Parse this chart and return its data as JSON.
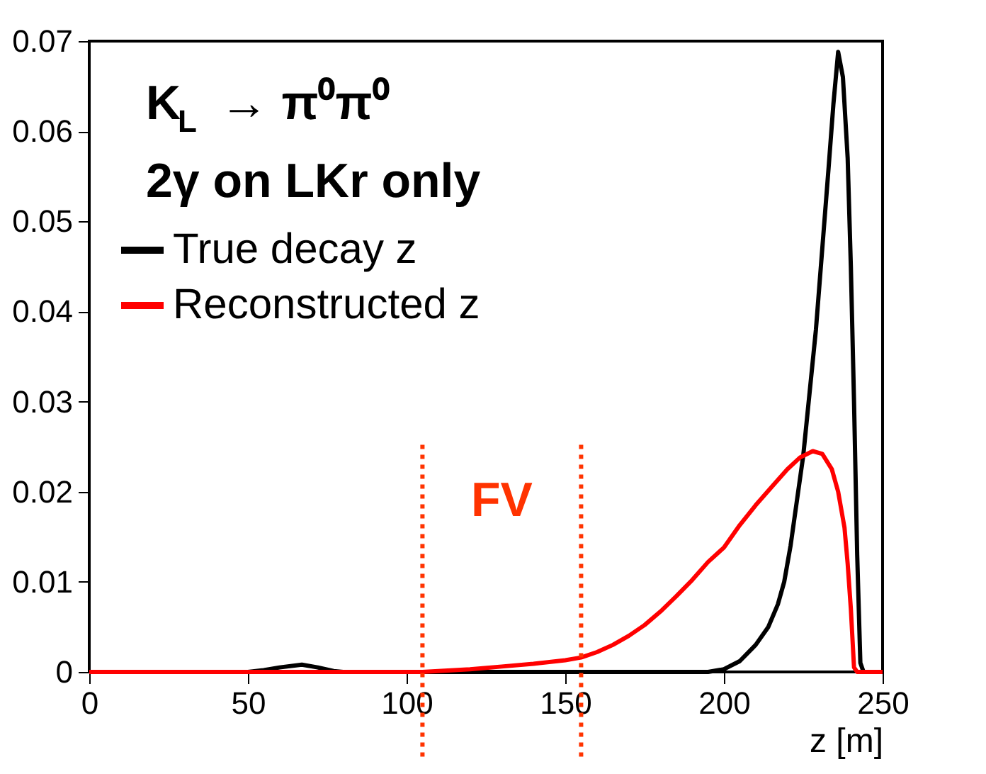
{
  "chart_data": {
    "type": "line",
    "xlabel": "z [m]",
    "xlim": [
      0,
      250
    ],
    "xticks": [
      0,
      50,
      100,
      150,
      200,
      250
    ],
    "ylim": [
      0,
      0.07
    ],
    "yticks": [
      0,
      0.01,
      0.02,
      0.03,
      0.04,
      0.05,
      0.06,
      0.07
    ],
    "grid": false,
    "legend": "top left",
    "series": [
      {
        "name": "True decay z",
        "color": "#000000",
        "x": [
          0,
          50,
          55,
          60,
          67,
          72,
          77,
          80,
          150,
          195,
          200,
          205,
          210,
          214,
          217,
          219,
          221,
          223,
          225,
          227,
          229,
          231,
          233,
          234.5,
          236,
          237.5,
          239,
          240,
          241,
          242,
          243,
          244,
          250
        ],
        "values": [
          0,
          0,
          0.0002,
          0.0005,
          0.0008,
          0.0005,
          0.0001,
          0,
          0,
          0,
          0.0003,
          0.0012,
          0.003,
          0.005,
          0.0075,
          0.01,
          0.014,
          0.019,
          0.024,
          0.031,
          0.038,
          0.047,
          0.056,
          0.063,
          0.0688,
          0.066,
          0.057,
          0.045,
          0.03,
          0.013,
          0.001,
          0,
          0
        ]
      },
      {
        "name": "Reconstructed z",
        "color": "#ff0000",
        "x": [
          0,
          105,
          110,
          120,
          130,
          140,
          150,
          155,
          160,
          165,
          170,
          175,
          180,
          185,
          190,
          195,
          200,
          205,
          210,
          215,
          220,
          224,
          228,
          231,
          234,
          236,
          238,
          239,
          240,
          241,
          242,
          250
        ],
        "values": [
          0,
          0,
          0.0001,
          0.0003,
          0.0006,
          0.0009,
          0.0013,
          0.0016,
          0.0022,
          0.003,
          0.004,
          0.0052,
          0.0067,
          0.0084,
          0.0102,
          0.0122,
          0.0138,
          0.0163,
          0.0185,
          0.0205,
          0.0225,
          0.0238,
          0.0245,
          0.0242,
          0.0225,
          0.02,
          0.016,
          0.012,
          0.007,
          0.0005,
          0,
          0
        ]
      }
    ],
    "ref_lines": [
      {
        "axis": "x",
        "value": 105,
        "color": "#ff3300",
        "line_style": "dotted"
      },
      {
        "axis": "x",
        "value": 155,
        "color": "#ff3300",
        "line_style": "dotted"
      }
    ],
    "annotations": [
      "K$_{L}$ → π⁰π⁰",
      "2γ on LKr only",
      "FV"
    ]
  }
}
